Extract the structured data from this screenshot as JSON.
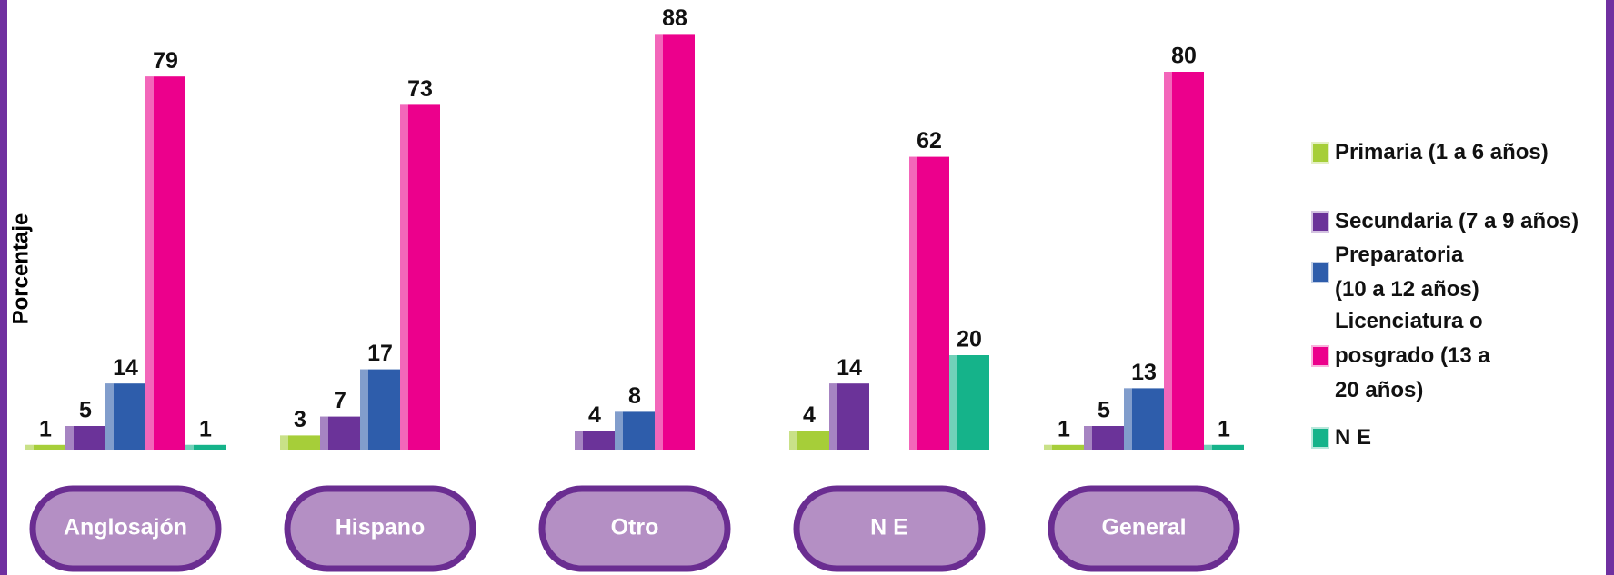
{
  "chart_data": {
    "type": "bar",
    "y_label": "Porcentaje",
    "categories": [
      "Anglosajón",
      "Hispano",
      "Otro",
      "N E",
      "General"
    ],
    "series": [
      {
        "name": "Primaria (1 a 6 años)",
        "color": "#a6ce39",
        "values": [
          1,
          3,
          null,
          4,
          1
        ]
      },
      {
        "name": "Secundaria (7 a 9 años)",
        "color": "#6b3399",
        "values": [
          5,
          7,
          4,
          14,
          5
        ]
      },
      {
        "name": "Preparatoria (10 a 12 años)",
        "color": "#2e5dab",
        "values": [
          14,
          17,
          8,
          null,
          13
        ]
      },
      {
        "name": "Licenciatura o posgrado (13 a 20 años)",
        "color": "#ec008c",
        "values": [
          79,
          73,
          88,
          62,
          80
        ]
      },
      {
        "name": "N E",
        "color": "#15b38a",
        "values": [
          1,
          null,
          null,
          20,
          1
        ]
      }
    ],
    "ylim": [
      0,
      90
    ]
  }
}
